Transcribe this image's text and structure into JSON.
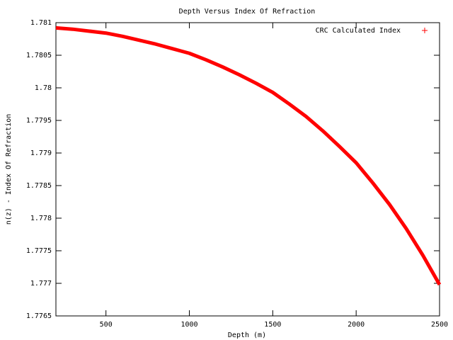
{
  "chart_data": {
    "type": "line",
    "title": "Depth Versus Index Of Refraction",
    "x_label": "Depth (m)",
    "y_label": "n(z) - Index Of Refraction",
    "x": [
      200,
      300,
      400,
      500,
      600,
      700,
      800,
      900,
      1000,
      1100,
      1200,
      1300,
      1400,
      1500,
      1600,
      1700,
      1800,
      1900,
      2000,
      2100,
      2200,
      2300,
      2400,
      2500
    ],
    "series": [
      {
        "name": "CRC Calculated Index",
        "color": "#ff0000",
        "values": [
          1.78092,
          1.7809,
          1.78087,
          1.78084,
          1.78079,
          1.78073,
          1.78067,
          1.7806,
          1.78053,
          1.78043,
          1.78032,
          1.7802,
          1.78007,
          1.77993,
          1.77975,
          1.77956,
          1.77934,
          1.7791,
          1.77885,
          1.77854,
          1.77821,
          1.77784,
          1.77743,
          1.77698
        ]
      }
    ],
    "xlim": [
      200,
      2500
    ],
    "xticks": [
      500,
      1000,
      1500,
      2000,
      2500
    ],
    "ylim": [
      1.7765,
      1.781
    ],
    "yticks": [
      1.7765,
      1.777,
      1.7775,
      1.778,
      1.7785,
      1.779,
      1.7795,
      1.78,
      1.7805,
      1.781
    ],
    "grid": false,
    "legend": "top-right"
  }
}
